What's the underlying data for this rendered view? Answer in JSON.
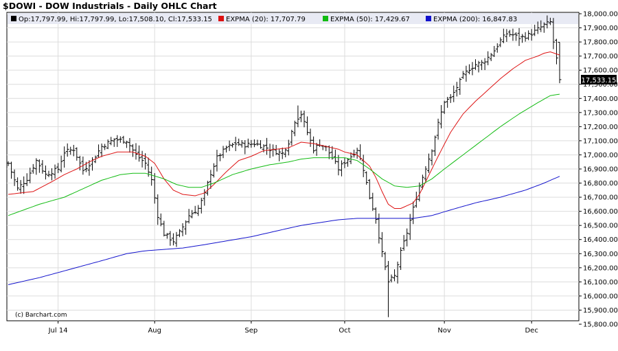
{
  "chart_data": {
    "type": "ohlc",
    "title": "$DOWI - DOW Industrials - Daily OHLC Chart",
    "legend_placement": "top",
    "legend": {
      "ohlc_label": "Op:17,797.99, Hi:17,797.99, Lo:17,508.10, Cl:17,533.15",
      "series": [
        {
          "name": "EXPMA (20): 17,707.79",
          "color": "#dd1111"
        },
        {
          "name": "EXPMA (50): 17,429.67",
          "color": "#11bb11"
        },
        {
          "name": "EXPMA (200): 16,847.83",
          "color": "#1111cc"
        }
      ]
    },
    "copyright": "(c) Barchart.com",
    "last_price_label": "17,533.15",
    "ylim": [
      15800,
      18000
    ],
    "y_ticks": [
      15800,
      15900,
      16000,
      16100,
      16200,
      16300,
      16400,
      16500,
      16600,
      16700,
      16800,
      16900,
      17000,
      17100,
      17200,
      17300,
      17400,
      17500,
      17600,
      17700,
      17800,
      17900,
      18000
    ],
    "y_tick_labels": [
      "15,800.00",
      "15,900.00",
      "16,000.00",
      "16,100.00",
      "16,200.00",
      "16,300.00",
      "16,400.00",
      "16,500.00",
      "16,600.00",
      "16,700.00",
      "16,800.00",
      "16,900.00",
      "17,000.00",
      "17,100.00",
      "17,200.00",
      "17,300.00",
      "17,400.00",
      "17,500.00",
      "17,600.00",
      "17,700.00",
      "17,800.00",
      "17,900.00",
      "18,000.00"
    ],
    "x_months": [
      {
        "label": "Jul 14",
        "index": 16
      },
      {
        "label": "Aug",
        "index": 47
      },
      {
        "label": "Sep",
        "index": 78
      },
      {
        "label": "Oct",
        "index": 108
      },
      {
        "label": "Nov",
        "index": 140
      },
      {
        "label": "Dec",
        "index": 168
      }
    ],
    "bar_count": 178,
    "close_anchors": [
      [
        0,
        16940
      ],
      [
        3,
        16760
      ],
      [
        6,
        16830
      ],
      [
        9,
        16960
      ],
      [
        12,
        16860
      ],
      [
        16,
        16900
      ],
      [
        18,
        17020
      ],
      [
        21,
        17040
      ],
      [
        24,
        16890
      ],
      [
        27,
        16960
      ],
      [
        30,
        17060
      ],
      [
        34,
        17110
      ],
      [
        38,
        17100
      ],
      [
        41,
        17000
      ],
      [
        44,
        16940
      ],
      [
        46,
        16820
      ],
      [
        48,
        16570
      ],
      [
        50,
        16440
      ],
      [
        53,
        16390
      ],
      [
        55,
        16450
      ],
      [
        58,
        16570
      ],
      [
        61,
        16620
      ],
      [
        63,
        16720
      ],
      [
        65,
        16870
      ],
      [
        67,
        16980
      ],
      [
        70,
        17050
      ],
      [
        73,
        17080
      ],
      [
        76,
        17070
      ],
      [
        79,
        17080
      ],
      [
        82,
        17060
      ],
      [
        85,
        17030
      ],
      [
        88,
        17010
      ],
      [
        90,
        17090
      ],
      [
        92,
        17240
      ],
      [
        94,
        17290
      ],
      [
        96,
        17160
      ],
      [
        98,
        17040
      ],
      [
        100,
        17080
      ],
      [
        102,
        17050
      ],
      [
        104,
        16980
      ],
      [
        106,
        16900
      ],
      [
        108,
        16950
      ],
      [
        110,
        16990
      ],
      [
        112,
        17040
      ],
      [
        114,
        16900
      ],
      [
        116,
        16700
      ],
      [
        118,
        16550
      ],
      [
        120,
        16300
      ],
      [
        122,
        16100
      ],
      [
        124,
        16140
      ],
      [
        126,
        16310
      ],
      [
        128,
        16450
      ],
      [
        130,
        16620
      ],
      [
        132,
        16780
      ],
      [
        134,
        16910
      ],
      [
        136,
        17040
      ],
      [
        138,
        17220
      ],
      [
        140,
        17380
      ],
      [
        142,
        17400
      ],
      [
        144,
        17480
      ],
      [
        146,
        17560
      ],
      [
        148,
        17610
      ],
      [
        150,
        17640
      ],
      [
        152,
        17650
      ],
      [
        154,
        17690
      ],
      [
        156,
        17740
      ],
      [
        158,
        17810
      ],
      [
        160,
        17860
      ],
      [
        162,
        17850
      ],
      [
        164,
        17830
      ],
      [
        166,
        17840
      ],
      [
        168,
        17860
      ],
      [
        170,
        17890
      ],
      [
        172,
        17920
      ],
      [
        174,
        17940
      ],
      [
        175,
        17800
      ],
      [
        176,
        17680
      ],
      [
        177,
        17533
      ]
    ],
    "ema_20": [
      [
        0,
        16720
      ],
      [
        8,
        16740
      ],
      [
        14,
        16810
      ],
      [
        18,
        16860
      ],
      [
        22,
        16900
      ],
      [
        26,
        16950
      ],
      [
        30,
        16990
      ],
      [
        35,
        17020
      ],
      [
        40,
        17020
      ],
      [
        44,
        16990
      ],
      [
        47,
        16940
      ],
      [
        50,
        16830
      ],
      [
        53,
        16750
      ],
      [
        56,
        16720
      ],
      [
        60,
        16710
      ],
      [
        63,
        16730
      ],
      [
        66,
        16790
      ],
      [
        70,
        16880
      ],
      [
        74,
        16960
      ],
      [
        78,
        16990
      ],
      [
        82,
        17030
      ],
      [
        86,
        17040
      ],
      [
        90,
        17050
      ],
      [
        94,
        17090
      ],
      [
        98,
        17080
      ],
      [
        102,
        17060
      ],
      [
        106,
        17040
      ],
      [
        108,
        17020
      ],
      [
        112,
        17000
      ],
      [
        116,
        16920
      ],
      [
        118,
        16840
      ],
      [
        120,
        16740
      ],
      [
        122,
        16650
      ],
      [
        124,
        16620
      ],
      [
        126,
        16620
      ],
      [
        128,
        16640
      ],
      [
        130,
        16660
      ],
      [
        132,
        16720
      ],
      [
        134,
        16810
      ],
      [
        136,
        16900
      ],
      [
        138,
        16990
      ],
      [
        142,
        17160
      ],
      [
        146,
        17290
      ],
      [
        150,
        17380
      ],
      [
        154,
        17460
      ],
      [
        158,
        17540
      ],
      [
        162,
        17610
      ],
      [
        166,
        17670
      ],
      [
        170,
        17700
      ],
      [
        172,
        17720
      ],
      [
        174,
        17730
      ],
      [
        176,
        17715
      ],
      [
        177,
        17708
      ]
    ],
    "ema_50": [
      [
        0,
        16570
      ],
      [
        10,
        16650
      ],
      [
        18,
        16700
      ],
      [
        24,
        16760
      ],
      [
        30,
        16820
      ],
      [
        36,
        16860
      ],
      [
        40,
        16870
      ],
      [
        44,
        16870
      ],
      [
        50,
        16830
      ],
      [
        54,
        16790
      ],
      [
        58,
        16770
      ],
      [
        62,
        16770
      ],
      [
        66,
        16800
      ],
      [
        72,
        16860
      ],
      [
        78,
        16900
      ],
      [
        84,
        16930
      ],
      [
        90,
        16950
      ],
      [
        94,
        16970
      ],
      [
        98,
        16980
      ],
      [
        102,
        16980
      ],
      [
        108,
        16980
      ],
      [
        112,
        16960
      ],
      [
        116,
        16900
      ],
      [
        120,
        16830
      ],
      [
        124,
        16780
      ],
      [
        128,
        16770
      ],
      [
        132,
        16780
      ],
      [
        136,
        16830
      ],
      [
        140,
        16900
      ],
      [
        146,
        17000
      ],
      [
        152,
        17100
      ],
      [
        158,
        17200
      ],
      [
        164,
        17290
      ],
      [
        170,
        17370
      ],
      [
        174,
        17420
      ],
      [
        177,
        17430
      ]
    ],
    "ema_200": [
      [
        0,
        16080
      ],
      [
        10,
        16130
      ],
      [
        20,
        16190
      ],
      [
        30,
        16250
      ],
      [
        38,
        16300
      ],
      [
        44,
        16320
      ],
      [
        50,
        16330
      ],
      [
        56,
        16340
      ],
      [
        62,
        16360
      ],
      [
        70,
        16390
      ],
      [
        78,
        16420
      ],
      [
        86,
        16460
      ],
      [
        94,
        16500
      ],
      [
        100,
        16520
      ],
      [
        106,
        16540
      ],
      [
        112,
        16550
      ],
      [
        118,
        16550
      ],
      [
        124,
        16550
      ],
      [
        130,
        16550
      ],
      [
        136,
        16570
      ],
      [
        142,
        16610
      ],
      [
        150,
        16660
      ],
      [
        158,
        16700
      ],
      [
        166,
        16750
      ],
      [
        172,
        16800
      ],
      [
        177,
        16848
      ]
    ]
  }
}
